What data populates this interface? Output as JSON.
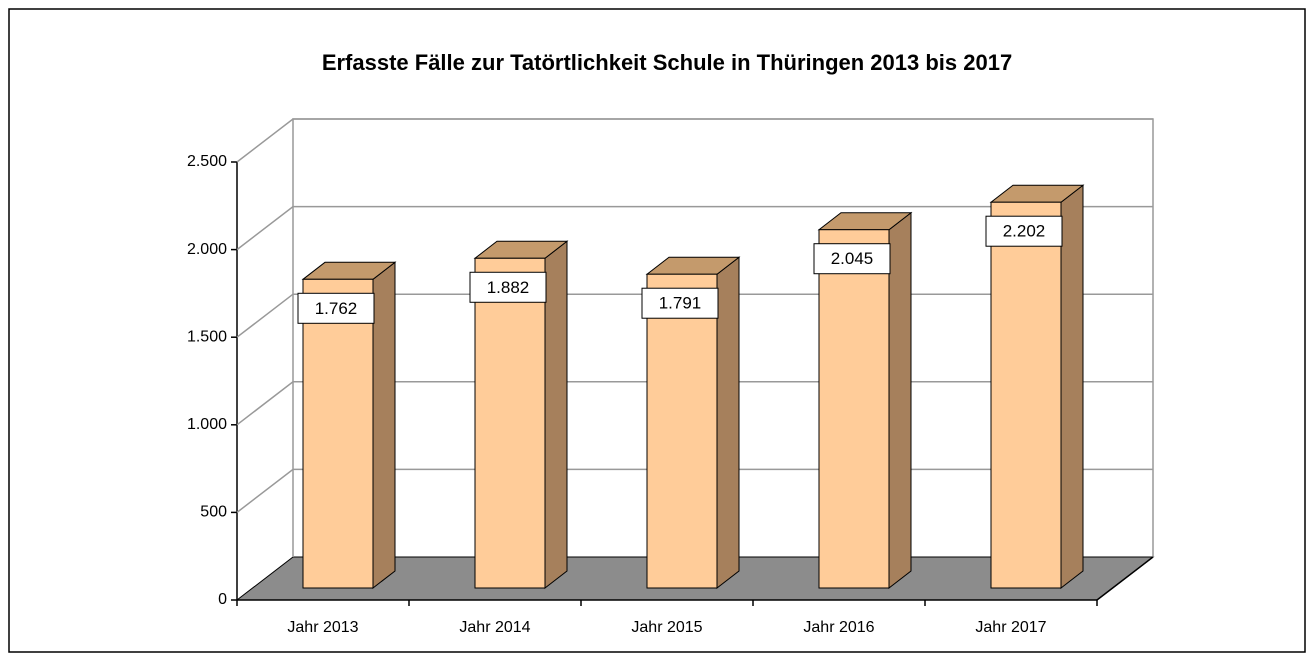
{
  "chart_data": {
    "type": "bar3d",
    "title": "Erfasste Fälle zur Tatörtlichkeit Schule in Thüringen 2013 bis 2017",
    "categories": [
      "Jahr 2013",
      "Jahr 2014",
      "Jahr 2015",
      "Jahr 2016",
      "Jahr 2017"
    ],
    "values": [
      1762,
      1882,
      1791,
      2045,
      2202
    ],
    "value_labels": [
      "1.762",
      "1.882",
      "1.791",
      "2.045",
      "2.202"
    ],
    "color": "#ffcc99",
    "ylim": [
      0,
      2500
    ],
    "yticks": [
      0,
      500,
      {
        "value": 1000,
        "label": "1.000"
      },
      {
        "value": 1500,
        "label": "1.500"
      },
      {
        "value": 2000,
        "label": "2.000"
      },
      {
        "value": 2500,
        "label": "2.500"
      }
    ],
    "grid": true
  }
}
